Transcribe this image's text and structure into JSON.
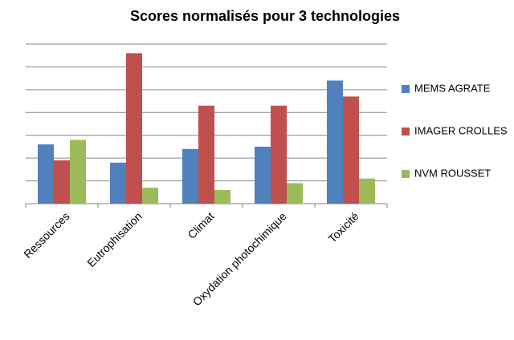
{
  "chart_data": {
    "type": "bar",
    "title": "Scores normalisés pour 3 technologies",
    "categories": [
      "Ressources",
      "Eutrophisation",
      "Climat",
      "Oxydation photochimique",
      "Toxicité"
    ],
    "series": [
      {
        "name": "MEMS AGRATE",
        "color": "#4f81bd",
        "values": [
          2.6,
          1.8,
          2.4,
          2.5,
          5.4
        ]
      },
      {
        "name": "IMAGER CROLLES",
        "color": "#c0504d",
        "values": [
          1.9,
          6.6,
          4.3,
          4.3,
          4.7
        ]
      },
      {
        "name": "NVM ROUSSET",
        "color": "#9bbb59",
        "values": [
          2.8,
          0.7,
          0.6,
          0.9,
          1.1
        ]
      }
    ],
    "ylim": [
      0,
      7
    ],
    "yticks": [
      0,
      1,
      2,
      3,
      4,
      5,
      6,
      7
    ],
    "grid": true,
    "legend": "right"
  }
}
